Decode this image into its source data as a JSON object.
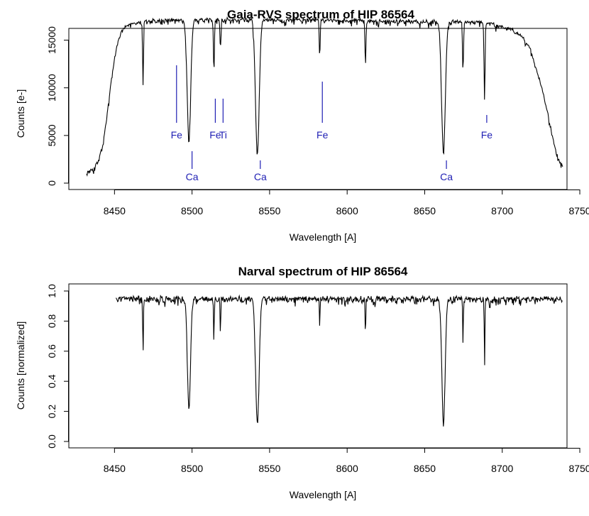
{
  "chart_data": [
    {
      "type": "line",
      "title": "Gaia-RVS spectrum of HIP 86564",
      "xlabel": "Wavelength [A]",
      "ylabel": "Counts [e-]",
      "xlim": [
        8420,
        8750
      ],
      "ylim": [
        0,
        17500
      ],
      "xticks": [
        8450,
        8500,
        8550,
        8600,
        8650,
        8700,
        8750
      ],
      "yticks": [
        0,
        5000,
        10000,
        15000
      ],
      "grid": false,
      "line_color": "#000000",
      "series": [
        {
          "x_range": [
            8432,
            8739
          ],
          "continuum": [
            [
              8432,
              1200
            ],
            [
              8437,
              1700
            ],
            [
              8440,
              2600
            ],
            [
              8443,
              4600
            ],
            [
              8446,
              8400
            ],
            [
              8449,
              12200
            ],
            [
              8452,
              14900
            ],
            [
              8455,
              16200
            ],
            [
              8460,
              16800
            ],
            [
              8470,
              17100
            ],
            [
              8480,
              17200
            ],
            [
              8500,
              17300
            ],
            [
              8520,
              17300
            ],
            [
              8550,
              17300
            ],
            [
              8600,
              17200
            ],
            [
              8650,
              17100
            ],
            [
              8690,
              17000
            ],
            [
              8705,
              16300
            ],
            [
              8712,
              15700
            ],
            [
              8718,
              14200
            ],
            [
              8724,
              11000
            ],
            [
              8728,
              8400
            ],
            [
              8732,
              5300
            ],
            [
              8735,
              3200
            ],
            [
              8737,
              2400
            ],
            [
              8739,
              2000
            ]
          ],
          "absorption_lines": [
            {
              "x": 8498.0,
              "depth": 12600,
              "width": 1.6
            },
            {
              "x": 8542.1,
              "depth": 14200,
              "width": 1.7
            },
            {
              "x": 8662.1,
              "depth": 13700,
              "width": 1.7
            },
            {
              "x": 8468.4,
              "depth": 6800,
              "width": 0.4
            },
            {
              "x": 8514.1,
              "depth": 5600,
              "width": 0.45
            },
            {
              "x": 8518.3,
              "depth": 3000,
              "width": 0.45
            },
            {
              "x": 8582.3,
              "depth": 3400,
              "width": 0.45
            },
            {
              "x": 8611.8,
              "depth": 4600,
              "width": 0.45
            },
            {
              "x": 8674.7,
              "depth": 5200,
              "width": 0.45
            },
            {
              "x": 8688.6,
              "depth": 8400,
              "width": 0.45
            }
          ]
        }
      ],
      "annotations": [
        {
          "text": "Fe",
          "x": 8490,
          "position": "below",
          "color": "#1f1fb4"
        },
        {
          "text": "Fe",
          "x": 8515,
          "position": "below",
          "color": "#1f1fb4"
        },
        {
          "text": "Ti",
          "x": 8520,
          "position": "below",
          "color": "#1f1fb4"
        },
        {
          "text": "Fe",
          "x": 8584,
          "position": "below",
          "color": "#1f1fb4"
        },
        {
          "text": "Fe",
          "x": 8690,
          "position": "below",
          "color": "#1f1fb4"
        },
        {
          "text": "Ca",
          "x": 8500,
          "position": "below",
          "color": "#1f1fb4"
        },
        {
          "text": "Ca",
          "x": 8544,
          "position": "below",
          "color": "#1f1fb4"
        },
        {
          "text": "Ca",
          "x": 8664,
          "position": "below",
          "color": "#1f1fb4"
        }
      ]
    },
    {
      "type": "line",
      "title": "Narval spectrum of HIP 86564",
      "xlabel": "Wavelength [A]",
      "ylabel": "Counts [normalized]",
      "xlim": [
        8420,
        8750
      ],
      "ylim": [
        0.0,
        1.0
      ],
      "xticks": [
        8450,
        8500,
        8550,
        8600,
        8650,
        8700,
        8750
      ],
      "yticks": [
        "0.0",
        "0.2",
        "0.4",
        "0.6",
        "0.8",
        "1.0"
      ],
      "grid": false,
      "line_color": "#000000",
      "series": [
        {
          "x_range": [
            8451,
            8739
          ],
          "continuum_level": 0.96,
          "absorption_lines": [
            {
              "x": 8498.0,
              "depth": 0.73,
              "width": 1.4
            },
            {
              "x": 8542.1,
              "depth": 0.83,
              "width": 1.6
            },
            {
              "x": 8662.1,
              "depth": 0.82,
              "width": 1.5
            },
            {
              "x": 8468.4,
              "depth": 0.35,
              "width": 0.3
            },
            {
              "x": 8514.1,
              "depth": 0.3,
              "width": 0.3
            },
            {
              "x": 8518.3,
              "depth": 0.26,
              "width": 0.3
            },
            {
              "x": 8582.3,
              "depth": 0.17,
              "width": 0.3
            },
            {
              "x": 8611.8,
              "depth": 0.23,
              "width": 0.3
            },
            {
              "x": 8674.7,
              "depth": 0.31,
              "width": 0.3
            },
            {
              "x": 8688.6,
              "depth": 0.47,
              "width": 0.3
            }
          ]
        }
      ]
    }
  ]
}
